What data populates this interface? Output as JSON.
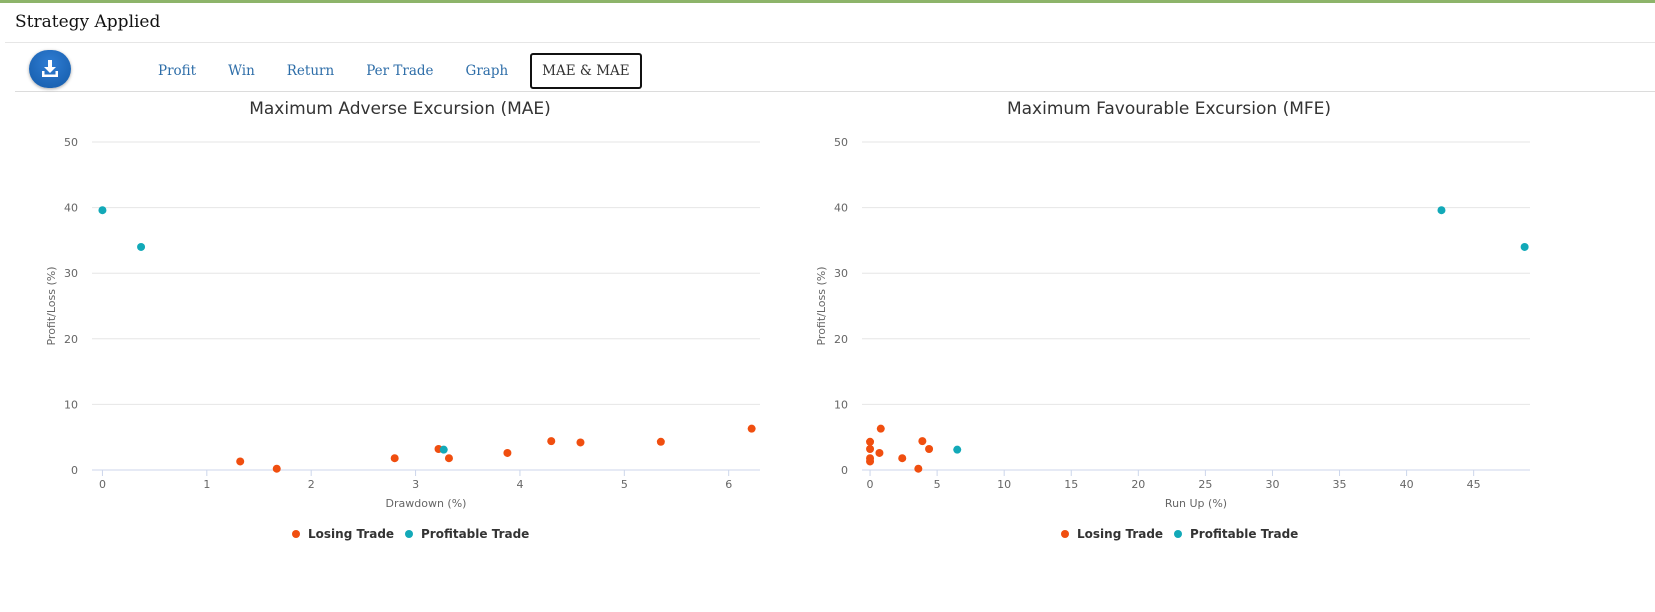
{
  "header": {
    "title": "Strategy Applied"
  },
  "toolbar": {
    "download_icon": "download-icon",
    "tabs": [
      "Profit",
      "Win",
      "Return",
      "Per Trade",
      "Graph",
      "MAE & MAE"
    ],
    "active_tab": 5
  },
  "colors": {
    "losing": "#f04e0f",
    "profitable": "#12a9b8",
    "accent_bar": "#8db46a",
    "tab_link": "#2d6da8"
  },
  "chart_data": [
    {
      "type": "scatter",
      "title": "Maximum Adverse Excursion (MAE)",
      "xlabel": "Drawdown (%)",
      "ylabel": "Profit/Loss (%)",
      "xlim": [
        -0.1,
        6.3
      ],
      "ylim": [
        0,
        50
      ],
      "x_ticks": [
        0,
        1,
        2,
        3,
        4,
        5,
        6
      ],
      "y_ticks": [
        0,
        10,
        20,
        30,
        40,
        50
      ],
      "grid": "horizontal",
      "legend": "bottom-center",
      "series": [
        {
          "name": "Losing Trade",
          "color": "#f04e0f",
          "points": [
            [
              1.32,
              1.3
            ],
            [
              1.67,
              0.2
            ],
            [
              2.8,
              1.8
            ],
            [
              3.22,
              3.2
            ],
            [
              3.32,
              1.8
            ],
            [
              3.88,
              2.6
            ],
            [
              4.3,
              4.4
            ],
            [
              4.58,
              4.2
            ],
            [
              5.35,
              4.3
            ],
            [
              6.22,
              6.3
            ]
          ]
        },
        {
          "name": "Profitable Trade",
          "color": "#12a9b8",
          "points": [
            [
              0.0,
              39.6
            ],
            [
              0.37,
              34.0
            ],
            [
              3.27,
              3.1
            ]
          ]
        }
      ]
    },
    {
      "type": "scatter",
      "title": "Maximum Favourable Excursion (MFE)",
      "xlabel": "Run Up (%)",
      "ylabel": "Profit/Loss (%)",
      "xlim": [
        -0.6,
        49.2
      ],
      "ylim": [
        0,
        50
      ],
      "x_ticks": [
        0,
        5,
        10,
        15,
        20,
        25,
        30,
        35,
        40,
        45
      ],
      "y_ticks": [
        0,
        10,
        20,
        30,
        40,
        50
      ],
      "grid": "horizontal",
      "legend": "bottom-center",
      "series": [
        {
          "name": "Losing Trade",
          "color": "#f04e0f",
          "points": [
            [
              0.0,
              4.3
            ],
            [
              0.0,
              3.2
            ],
            [
              0.0,
              1.8
            ],
            [
              0.0,
              1.3
            ],
            [
              0.7,
              2.6
            ],
            [
              0.8,
              6.3
            ],
            [
              2.4,
              1.8
            ],
            [
              3.6,
              0.2
            ],
            [
              3.9,
              4.4
            ],
            [
              4.4,
              3.2
            ]
          ]
        },
        {
          "name": "Profitable Trade",
          "color": "#12a9b8",
          "points": [
            [
              6.5,
              3.1
            ],
            [
              42.6,
              39.6
            ],
            [
              48.8,
              34.0
            ]
          ]
        }
      ]
    }
  ]
}
